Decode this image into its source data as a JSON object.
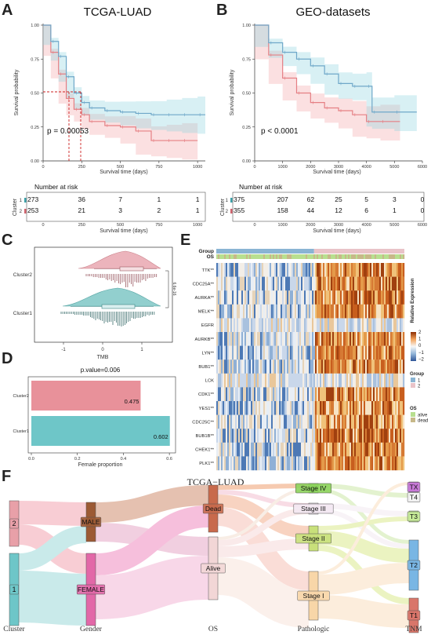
{
  "panel_labels": {
    "a": "A",
    "b": "B",
    "c": "C",
    "d": "D",
    "e": "E",
    "f": "F"
  },
  "panel_a": {
    "title": "TCGA-LUAD",
    "ylabel": "Survival probability",
    "xlabel": "Survival time (days)",
    "y_ticks": [
      "0.00",
      "0.25",
      "0.50",
      "0.75",
      "1.00"
    ],
    "x_ticks": [
      "0",
      "250",
      "500",
      "750",
      "1000"
    ],
    "pvalue": "p = 0.00053",
    "risk_title": "Number at risk",
    "risk_ylabel": "Cluster",
    "risk_row_labels": [
      "1",
      "2"
    ],
    "risk_rows": [
      [
        "273",
        "36",
        "7",
        "1",
        "1"
      ],
      [
        "253",
        "21",
        "3",
        "2",
        "1"
      ]
    ],
    "risk_xlabel": "Survival time (days)"
  },
  "panel_b": {
    "title": "GEO-datasets",
    "ylabel": "Survival probability",
    "xlabel": "Survival time (days)",
    "y_ticks": [
      "0.00",
      "0.25",
      "0.50",
      "0.75",
      "1.00"
    ],
    "x_ticks": [
      "0",
      "1000",
      "2000",
      "3000",
      "4000",
      "5000",
      "6000"
    ],
    "pvalue": "p < 0.0001",
    "risk_title": "Number at risk",
    "risk_ylabel": "Cluster",
    "risk_row_labels": [
      "1",
      "2"
    ],
    "risk_rows": [
      [
        "375",
        "207",
        "62",
        "25",
        "5",
        "3",
        "0"
      ],
      [
        "355",
        "158",
        "44",
        "12",
        "6",
        "1",
        "0"
      ]
    ],
    "risk_xlabel": "Survival time (days)"
  },
  "panel_c": {
    "categories": [
      "Cluster2",
      "Cluster1"
    ],
    "xlabel": "TMB",
    "x_ticks": [
      "-1",
      "0",
      "1"
    ],
    "sig_label": "6.6e-16"
  },
  "panel_d": {
    "title": "p.value=0.006",
    "categories": [
      "Cluster2",
      "Cluster1"
    ],
    "values": [
      0.475,
      0.602
    ],
    "value_labels": [
      "0.475",
      "0.602"
    ],
    "x_ticks": [
      "0.0",
      "0.2",
      "0.4",
      "0.6"
    ],
    "xlabel": "Female proportion"
  },
  "panel_e": {
    "row_group_label": "Group",
    "row_os_label": "OS",
    "genes": [
      "TTK**",
      "CDC25A**",
      "AURKA**",
      "MELK**",
      "EGFR",
      "AURKB**",
      "LYN**",
      "BUB1**",
      "LCK",
      "CDK1**",
      "YES1**",
      "CDC25C**",
      "BUB1B**",
      "CHEK1**",
      "PLK1**"
    ],
    "colorbar_title": "Relative Expression",
    "colorbar_ticks": [
      "2",
      "1",
      "0",
      "−1",
      "−2"
    ],
    "legend_group_title": "Group",
    "legend_group_items": [
      "1",
      "2"
    ],
    "legend_os_title": "OS",
    "legend_os_items": [
      "alive",
      "dead"
    ],
    "colors": {
      "high": "#b2182b",
      "mid": "#f7f7f7",
      "low": "#2166ac",
      "group1": "#8ab4d3",
      "group2": "#e9c3c8",
      "alive": "#b8df8f",
      "dead": "#c7b889"
    }
  },
  "panel_f": {
    "title": "TCGA−LUAD",
    "axis_labels": [
      "Cluster",
      "Gender",
      "OS",
      "Pathologic",
      "TNM"
    ],
    "nodes": {
      "cluster": [
        "2",
        "1"
      ],
      "gender": [
        "MALE",
        "FEMALE"
      ],
      "os": [
        "Dead",
        "Alive"
      ],
      "pathologic": [
        "Stage IV",
        "Stage III",
        "Stage II",
        "Stage I"
      ],
      "tnm": [
        "TX",
        "T4",
        "T3",
        "T2",
        "T1"
      ]
    }
  },
  "chart_data": [
    {
      "type": "line",
      "id": "A",
      "title": "TCGA-LUAD",
      "xlabel": "Survival time (days)",
      "ylabel": "Survival probability",
      "xlim": [
        0,
        1050
      ],
      "ylim": [
        0,
        1
      ],
      "series": [
        {
          "x": [
            0,
            50,
            100,
            150,
            200,
            250,
            300,
            400,
            500,
            600,
            700,
            800,
            900,
            1000,
            1050
          ],
          "y": [
            1.0,
            0.88,
            0.77,
            0.62,
            0.5,
            0.43,
            0.39,
            0.37,
            0.36,
            0.35,
            0.34,
            0.34,
            0.34,
            0.34,
            0.34
          ]
        },
        {
          "x": [
            0,
            50,
            100,
            150,
            200,
            250,
            300,
            400,
            500,
            600,
            700,
            800,
            900,
            1000
          ],
          "y": [
            1.0,
            0.8,
            0.64,
            0.46,
            0.38,
            0.34,
            0.29,
            0.26,
            0.25,
            0.22,
            0.15,
            0.15,
            0.15,
            0.15
          ]
        }
      ]
    },
    {
      "type": "line",
      "id": "B",
      "title": "GEO-datasets",
      "xlabel": "Survival time (days)",
      "ylabel": "Survival probability",
      "xlim": [
        0,
        6000
      ],
      "ylim": [
        0,
        1
      ],
      "series": [
        {
          "x": [
            0,
            500,
            1000,
            1500,
            2000,
            2500,
            3000,
            3500,
            4000,
            4200,
            5000,
            5800
          ],
          "y": [
            1.0,
            0.87,
            0.8,
            0.75,
            0.7,
            0.64,
            0.57,
            0.55,
            0.55,
            0.36,
            0.36,
            0.36
          ]
        },
        {
          "x": [
            0,
            500,
            1000,
            1500,
            2000,
            2500,
            3000,
            3500,
            4000,
            4500,
            5200
          ],
          "y": [
            1.0,
            0.78,
            0.61,
            0.5,
            0.43,
            0.39,
            0.37,
            0.34,
            0.29,
            0.29,
            0.29
          ]
        }
      ]
    },
    {
      "type": "bar",
      "id": "D",
      "title": "p.value=0.006",
      "categories": [
        "Cluster2",
        "Cluster1"
      ],
      "values": [
        0.475,
        0.602
      ],
      "xlabel": "Female proportion",
      "xlim": [
        0,
        0.62
      ]
    }
  ]
}
